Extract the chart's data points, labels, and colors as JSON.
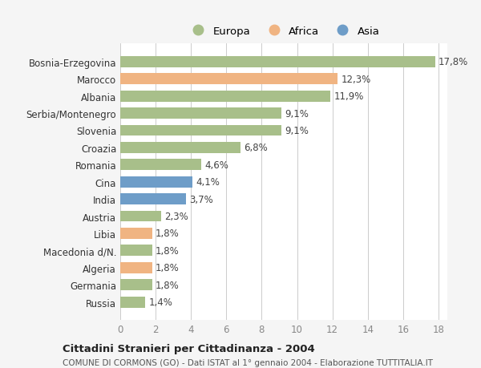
{
  "categories": [
    "Bosnia-Erzegovina",
    "Marocco",
    "Albania",
    "Serbia/Montenegro",
    "Slovenia",
    "Croazia",
    "Romania",
    "Cina",
    "India",
    "Austria",
    "Libia",
    "Macedonia d/N.",
    "Algeria",
    "Germania",
    "Russia"
  ],
  "values": [
    17.8,
    12.3,
    11.9,
    9.1,
    9.1,
    6.8,
    4.6,
    4.1,
    3.7,
    2.3,
    1.8,
    1.8,
    1.8,
    1.8,
    1.4
  ],
  "labels": [
    "17,8%",
    "12,3%",
    "11,9%",
    "9,1%",
    "9,1%",
    "6,8%",
    "4,6%",
    "4,1%",
    "3,7%",
    "2,3%",
    "1,8%",
    "1,8%",
    "1,8%",
    "1,8%",
    "1,4%"
  ],
  "colors": [
    "#a8bf8a",
    "#f0b482",
    "#a8bf8a",
    "#a8bf8a",
    "#a8bf8a",
    "#a8bf8a",
    "#a8bf8a",
    "#6e9dc8",
    "#6e9dc8",
    "#a8bf8a",
    "#f0b482",
    "#a8bf8a",
    "#f0b482",
    "#a8bf8a",
    "#a8bf8a"
  ],
  "legend_labels": [
    "Europa",
    "Africa",
    "Asia"
  ],
  "legend_colors": [
    "#a8bf8a",
    "#f0b482",
    "#6e9dc8"
  ],
  "title": "Cittadini Stranieri per Cittadinanza - 2004",
  "subtitle": "COMUNE DI CORMONS (GO) - Dati ISTAT al 1° gennaio 2004 - Elaborazione TUTTITALIA.IT",
  "xlim": [
    0,
    18
  ],
  "xticks": [
    0,
    2,
    4,
    6,
    8,
    10,
    12,
    14,
    16,
    18
  ],
  "background_color": "#f5f5f5",
  "plot_bg_color": "#ffffff",
  "grid_color": "#cccccc"
}
